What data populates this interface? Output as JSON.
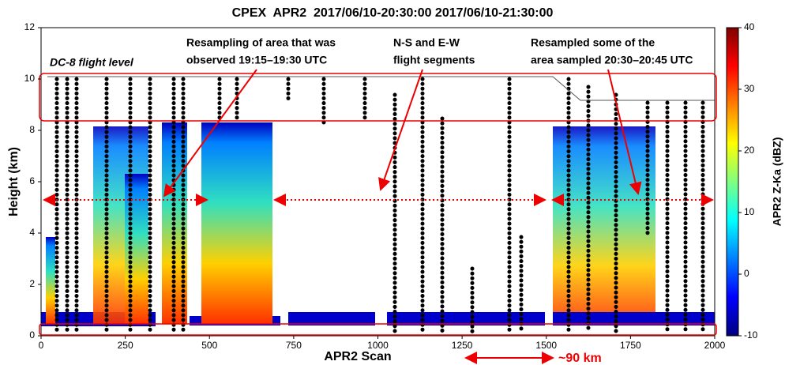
{
  "chart_data": {
    "type": "curtain",
    "title": "CPEX  APR2  2017/06/10-20:30:00 2017/06/10-21:30:00",
    "xlabel": "APR2 Scan",
    "ylabel": "Height (km)",
    "xlim": [
      0,
      2000
    ],
    "xticks": [
      0,
      250,
      500,
      750,
      1000,
      1250,
      1500,
      1750,
      2000
    ],
    "ylim": [
      0,
      12
    ],
    "yticks": [
      0,
      2,
      4,
      6,
      8,
      10,
      12
    ],
    "colorbar": {
      "label": "APR2 Z-Ka (dBZ)",
      "lim": [
        -10,
        40
      ],
      "ticks": [
        -10,
        0,
        10,
        20,
        30,
        40
      ],
      "colormap": "jet"
    },
    "annotations": [
      {
        "text": [
          "DC-8 flight level"
        ]
      },
      {
        "text": [
          "Resampling of area that was",
          "observed 19:15–19:30 UTC"
        ]
      },
      {
        "text": [
          "N-S and E-W",
          "flight segments"
        ]
      },
      {
        "text": [
          "Resampled some of the",
          "area sampled 20:30–20:45 UTC"
        ]
      }
    ],
    "scale_bar": "~90 km"
  }
}
